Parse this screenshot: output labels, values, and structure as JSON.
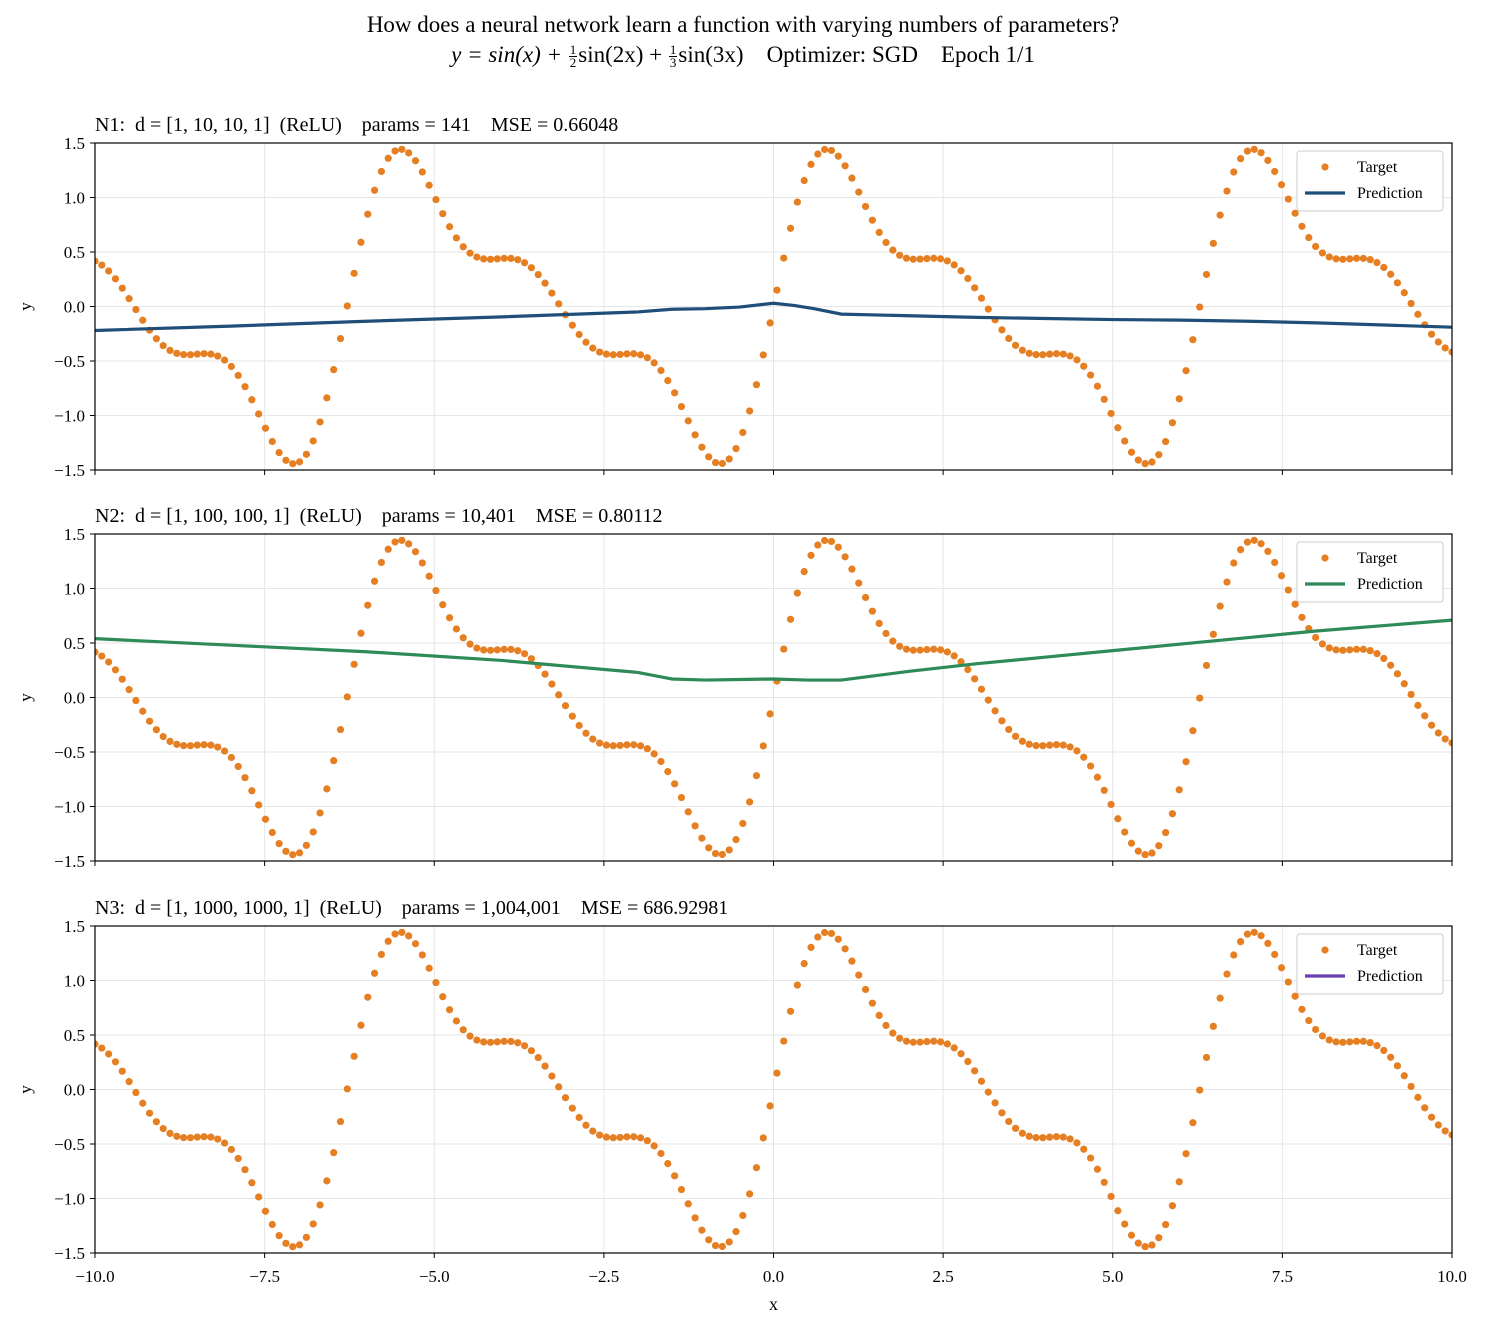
{
  "suptitle_line1": "How does a neural network learn a function with varying numbers of parameters?",
  "formula": {
    "lhs": "y = sin(x) + ",
    "half_num": "1",
    "half_den": "2",
    "mid": "sin(2x) + ",
    "third_num": "1",
    "third_den": "3",
    "tail": "sin(3x)"
  },
  "optimizer_text": "Optimizer: SGD",
  "epoch_text": "Epoch 1/1",
  "colors": {
    "target": "#e67e22",
    "grid": "#e6e6e6"
  },
  "chart_data": [
    {
      "type": "line",
      "title": "N1:  d = [1, 10, 10, 1]  (ReLU)    params = 141    MSE = 0.66048",
      "xlabel": "",
      "ylabel": "y",
      "xlim": [
        -10,
        10
      ],
      "ylim": [
        -1.5,
        1.5
      ],
      "xticks": [
        -10,
        -7.5,
        -5,
        -2.5,
        0,
        2.5,
        5,
        7.5,
        10
      ],
      "yticks": [
        -1.5,
        -1.0,
        -0.5,
        0.0,
        0.5,
        1.0,
        1.5
      ],
      "show_xticklabels": false,
      "grid": true,
      "legend": "top-right",
      "target": {
        "name": "Target",
        "function": "sin(x) + 1/2 sin(2x) + 1/3 sin(3x)",
        "n_points": 200,
        "x_range": [
          -10,
          10
        ]
      },
      "prediction": {
        "name": "Prediction",
        "color": "#1f4e79",
        "x": [
          -10,
          -8,
          -6,
          -4,
          -2,
          -1.5,
          -1,
          -0.5,
          0,
          0.3,
          0.6,
          1,
          2,
          3,
          4,
          5,
          6,
          7,
          8,
          9,
          10
        ],
        "y": [
          -0.22,
          -0.18,
          -0.135,
          -0.095,
          -0.05,
          -0.025,
          -0.02,
          -0.005,
          0.03,
          0.01,
          -0.02,
          -0.07,
          -0.085,
          -0.1,
          -0.11,
          -0.12,
          -0.125,
          -0.135,
          -0.15,
          -0.17,
          -0.19
        ]
      }
    },
    {
      "type": "line",
      "title": "N2:  d = [1, 100, 100, 1]  (ReLU)    params = 10,401    MSE = 0.80112",
      "xlabel": "",
      "ylabel": "y",
      "xlim": [
        -10,
        10
      ],
      "ylim": [
        -1.5,
        1.5
      ],
      "xticks": [
        -10,
        -7.5,
        -5,
        -2.5,
        0,
        2.5,
        5,
        7.5,
        10
      ],
      "yticks": [
        -1.5,
        -1.0,
        -0.5,
        0.0,
        0.5,
        1.0,
        1.5
      ],
      "show_xticklabels": false,
      "grid": true,
      "legend": "top-right",
      "target": {
        "name": "Target",
        "function": "sin(x) + 1/2 sin(2x) + 1/3 sin(3x)",
        "n_points": 200,
        "x_range": [
          -10,
          10
        ]
      },
      "prediction": {
        "name": "Prediction",
        "color": "#2e8b57",
        "x": [
          -10,
          -8,
          -6,
          -4,
          -2,
          -1.5,
          -1,
          -0.5,
          0,
          0.5,
          1,
          1.5,
          2,
          3,
          4,
          5,
          6,
          7,
          8,
          9,
          10
        ],
        "y": [
          0.54,
          0.48,
          0.42,
          0.34,
          0.23,
          0.17,
          0.16,
          0.165,
          0.17,
          0.16,
          0.16,
          0.2,
          0.24,
          0.31,
          0.37,
          0.43,
          0.49,
          0.55,
          0.61,
          0.66,
          0.71
        ]
      }
    },
    {
      "type": "line",
      "title": "N3:  d = [1, 1000, 1000, 1]  (ReLU)    params = 1,004,001    MSE = 686.92981",
      "xlabel": "x",
      "ylabel": "y",
      "xlim": [
        -10,
        10
      ],
      "ylim": [
        -1.5,
        1.5
      ],
      "xticks": [
        -10,
        -7.5,
        -5,
        -2.5,
        0,
        2.5,
        5,
        7.5,
        10
      ],
      "xticklabels": [
        "−10.0",
        "−7.5",
        "−5.0",
        "−2.5",
        "0.0",
        "2.5",
        "5.0",
        "7.5",
        "10.0"
      ],
      "yticks": [
        -1.5,
        -1.0,
        -0.5,
        0.0,
        0.5,
        1.0,
        1.5
      ],
      "show_xticklabels": true,
      "grid": true,
      "legend": "top-right",
      "target": {
        "name": "Target",
        "function": "sin(x) + 1/2 sin(2x) + 1/3 sin(3x)",
        "n_points": 200,
        "x_range": [
          -10,
          10
        ]
      },
      "prediction": {
        "name": "Prediction",
        "color": "#6a3fb5",
        "x": [],
        "y": []
      }
    }
  ]
}
